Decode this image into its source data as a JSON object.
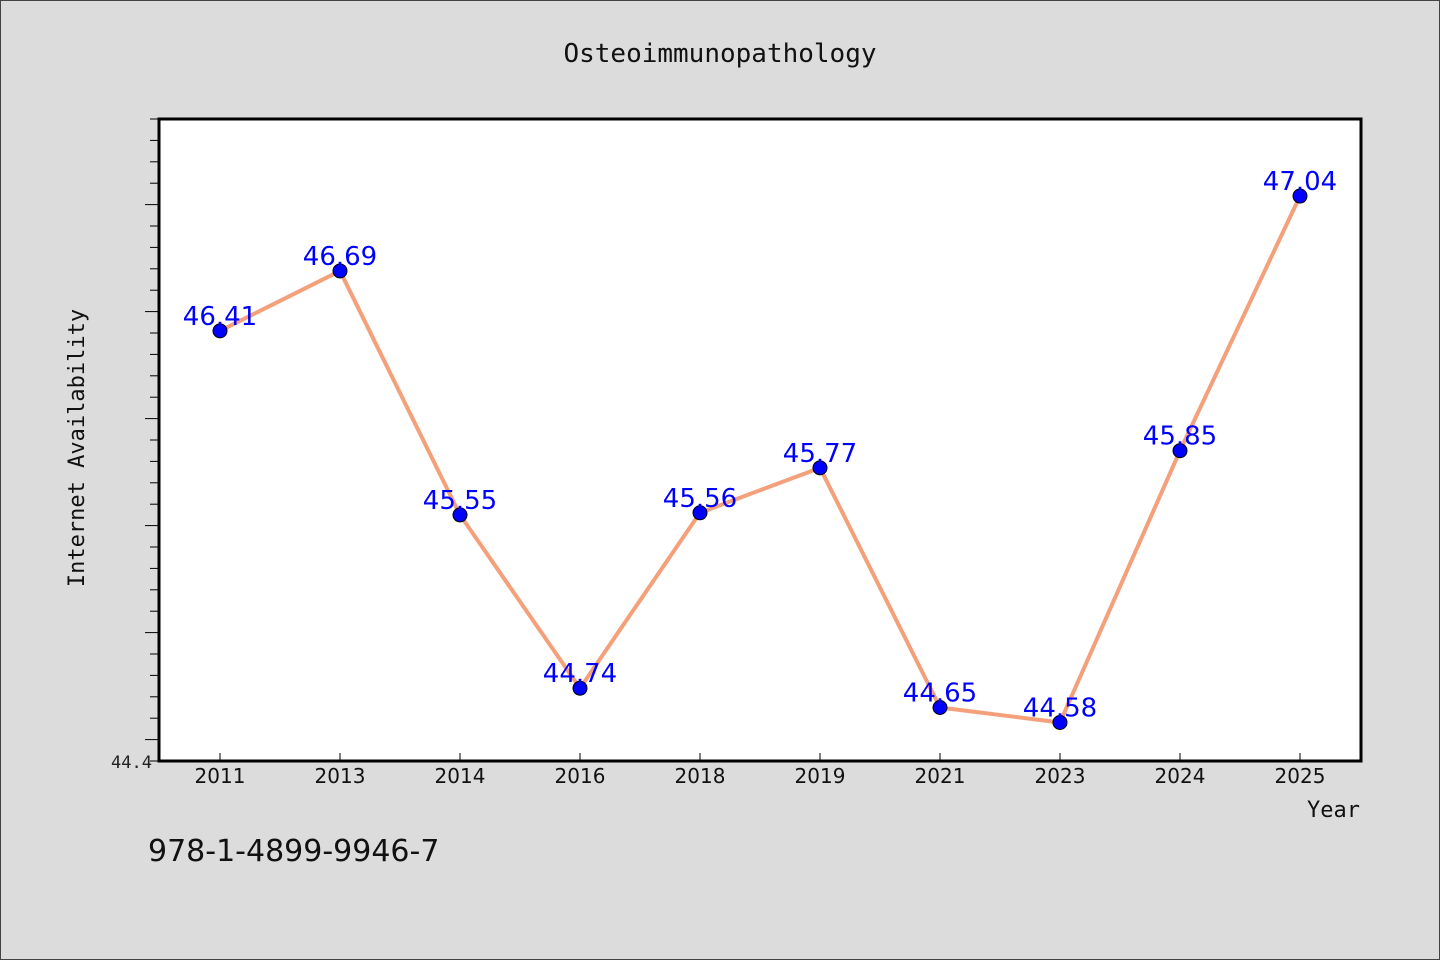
{
  "chart_data": {
    "type": "line",
    "title": "Osteoimmunopathology",
    "xlabel": "Year",
    "ylabel": "Internet Availability",
    "categories": [
      "2011",
      "2013",
      "2014",
      "2016",
      "2018",
      "2019",
      "2021",
      "2023",
      "2024",
      "2025"
    ],
    "values": [
      46.41,
      46.69,
      45.55,
      44.74,
      45.56,
      45.77,
      44.65,
      44.58,
      45.85,
      47.04
    ],
    "data_labels": [
      "46.41",
      "46.69",
      "45.55",
      "44.74",
      "45.56",
      "45.77",
      "44.65",
      "44.58",
      "45.85",
      "47.04"
    ],
    "ylim": [
      44.4,
      47.4
    ],
    "ytick_labels": [
      "44.4"
    ],
    "grid": false,
    "colors": {
      "line": "#f4a07a",
      "marker": "#0000ff",
      "label": "#0000ff",
      "background": "#dcdcdc",
      "plot_background": "#ffffff"
    }
  },
  "footer": {
    "isbn": "978-1-4899-9946-7"
  }
}
